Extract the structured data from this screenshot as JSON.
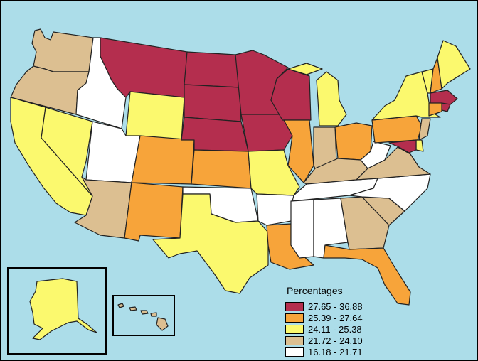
{
  "legend": {
    "title": "Percentages",
    "classes": [
      {
        "label": "27.65 - 36.88",
        "color": "#b42e4e"
      },
      {
        "label": "25.39 - 27.64",
        "color": "#f7a43a"
      },
      {
        "label": "24.11 - 25.38",
        "color": "#fbf96e"
      },
      {
        "label": "21.72 - 24.10",
        "color": "#dcbf91"
      },
      {
        "label": "16.18 - 21.71",
        "color": "#ffffff"
      }
    ]
  },
  "map": {
    "water_color": "#acdde9",
    "state_classes": {
      "WA": 3,
      "OR": 3,
      "CA": 2,
      "NV": 2,
      "ID": 4,
      "MT": 0,
      "WY": 2,
      "UT": 4,
      "AZ": 3,
      "CO": 1,
      "NM": 1,
      "ND": 0,
      "SD": 0,
      "NE": 0,
      "KS": 1,
      "OK": 4,
      "TX": 2,
      "MN": 0,
      "IA": 0,
      "MO": 2,
      "AR": 4,
      "LA": 1,
      "WI": 0,
      "IL": 1,
      "MI": 2,
      "IN": 3,
      "OH": 1,
      "KY": 3,
      "TN": 4,
      "MS": 4,
      "AL": 4,
      "GA": 3,
      "FL": 1,
      "SC": 3,
      "NC": 4,
      "VA": 3,
      "WV": 4,
      "PA": 1,
      "NY": 2,
      "VT": 2,
      "NH": 1,
      "ME": 2,
      "MA": 0,
      "RI": 0,
      "CT": 1,
      "NJ": 3,
      "DE": 2,
      "MD": 0,
      "AK": 2,
      "HI": 3
    }
  }
}
